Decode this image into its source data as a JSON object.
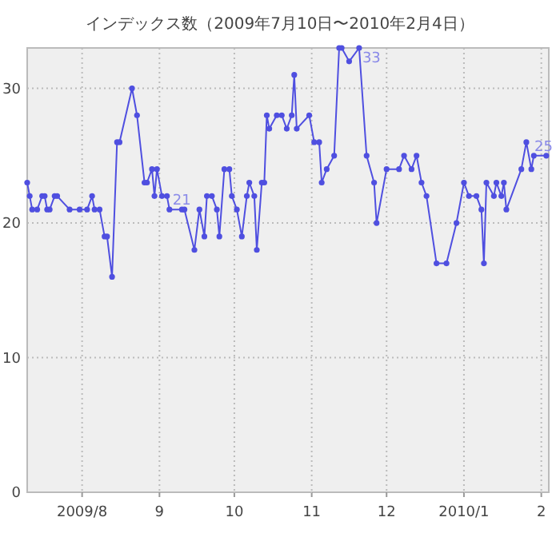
{
  "chart_data": {
    "type": "line",
    "title": "インデックス数（2009年7月10日〜2010年2月4日）",
    "x": [
      "2009-07-10",
      "2009-07-11",
      "2009-07-12",
      "2009-07-14",
      "2009-07-16",
      "2009-07-17",
      "2009-07-18",
      "2009-07-19",
      "2009-07-21",
      "2009-07-22",
      "2009-07-27",
      "2009-07-31",
      "2009-08-03",
      "2009-08-05",
      "2009-08-06",
      "2009-08-08",
      "2009-08-10",
      "2009-08-11",
      "2009-08-13",
      "2009-08-15",
      "2009-08-16",
      "2009-08-21",
      "2009-08-23",
      "2009-08-26",
      "2009-08-27",
      "2009-08-29",
      "2009-08-30",
      "2009-08-31",
      "2009-09-02",
      "2009-09-04",
      "2009-09-05",
      "2009-09-10",
      "2009-09-11",
      "2009-09-15",
      "2009-09-17",
      "2009-09-19",
      "2009-09-20",
      "2009-09-22",
      "2009-09-24",
      "2009-09-25",
      "2009-09-27",
      "2009-09-29",
      "2009-09-30",
      "2009-10-02",
      "2009-10-04",
      "2009-10-06",
      "2009-10-07",
      "2009-10-09",
      "2009-10-10",
      "2009-10-12",
      "2009-10-13",
      "2009-10-14",
      "2009-10-15",
      "2009-10-18",
      "2009-10-20",
      "2009-10-22",
      "2009-10-24",
      "2009-10-25",
      "2009-10-26",
      "2009-10-31",
      "2009-11-02",
      "2009-11-04",
      "2009-11-05",
      "2009-11-07",
      "2009-11-10",
      "2009-11-12",
      "2009-11-13",
      "2009-11-16",
      "2009-11-20",
      "2009-11-23",
      "2009-11-26",
      "2009-11-27",
      "2009-12-01",
      "2009-12-06",
      "2009-12-08",
      "2009-12-11",
      "2009-12-13",
      "2009-12-15",
      "2009-12-17",
      "2009-12-21",
      "2009-12-25",
      "2009-12-29",
      "2010-01-01",
      "2010-01-03",
      "2010-01-06",
      "2010-01-08",
      "2010-01-09",
      "2010-01-10",
      "2010-01-13",
      "2010-01-14",
      "2010-01-16",
      "2010-01-17",
      "2010-01-18",
      "2010-01-24",
      "2010-01-26",
      "2010-01-28",
      "2010-01-29",
      "2010-02-03"
    ],
    "series": [
      {
        "color": "#4f4fe0",
        "values": [
          23,
          22,
          21,
          21,
          22,
          22,
          21,
          21,
          22,
          22,
          21,
          21,
          21,
          22,
          21,
          21,
          19,
          19,
          16,
          26,
          26,
          30,
          28,
          23,
          23,
          24,
          22,
          24,
          22,
          22,
          21,
          21,
          21,
          18,
          21,
          19,
          22,
          22,
          21,
          19,
          24,
          24,
          22,
          21,
          19,
          22,
          23,
          22,
          18,
          23,
          23,
          28,
          27,
          28,
          28,
          27,
          28,
          31,
          27,
          28,
          26,
          26,
          23,
          24,
          25,
          33,
          33,
          32,
          33,
          25,
          23,
          20,
          24,
          24,
          25,
          24,
          25,
          23,
          22,
          17,
          17,
          20,
          23,
          22,
          22,
          21,
          17,
          23,
          22,
          23,
          22,
          23,
          21,
          24,
          26,
          24,
          25,
          25
        ],
        "value_labels": [
          null,
          null,
          null,
          null,
          null,
          null,
          null,
          null,
          null,
          null,
          null,
          null,
          null,
          null,
          null,
          null,
          null,
          null,
          null,
          null,
          null,
          null,
          null,
          null,
          null,
          null,
          null,
          null,
          null,
          null,
          "21",
          null,
          null,
          null,
          null,
          null,
          null,
          null,
          null,
          null,
          null,
          null,
          null,
          null,
          null,
          null,
          null,
          null,
          null,
          null,
          null,
          null,
          null,
          null,
          null,
          null,
          null,
          null,
          null,
          null,
          null,
          null,
          null,
          null,
          null,
          null,
          null,
          null,
          "33",
          null,
          null,
          null,
          null,
          null,
          null,
          null,
          null,
          null,
          null,
          null,
          null,
          null,
          null,
          null,
          null,
          null,
          null,
          null,
          null,
          null,
          null,
          null,
          null,
          null,
          null,
          null,
          null,
          "25"
        ]
      }
    ],
    "xlim": [
      "2009-07-10",
      "2010-02-04"
    ],
    "xticks": [
      {
        "value": "2009-08-01",
        "label": "2009/8"
      },
      {
        "value": "2009-09-01",
        "label": "9"
      },
      {
        "value": "2009-10-01",
        "label": "10"
      },
      {
        "value": "2009-11-01",
        "label": "11"
      },
      {
        "value": "2009-12-01",
        "label": "12"
      },
      {
        "value": "2010-01-01",
        "label": "2010/1"
      },
      {
        "value": "2010-02-01",
        "label": "2"
      }
    ],
    "ylim": [
      0,
      33
    ],
    "yticks": [
      0,
      10,
      20,
      30
    ],
    "grid": true,
    "marker": "circle",
    "line_style": "solid"
  }
}
